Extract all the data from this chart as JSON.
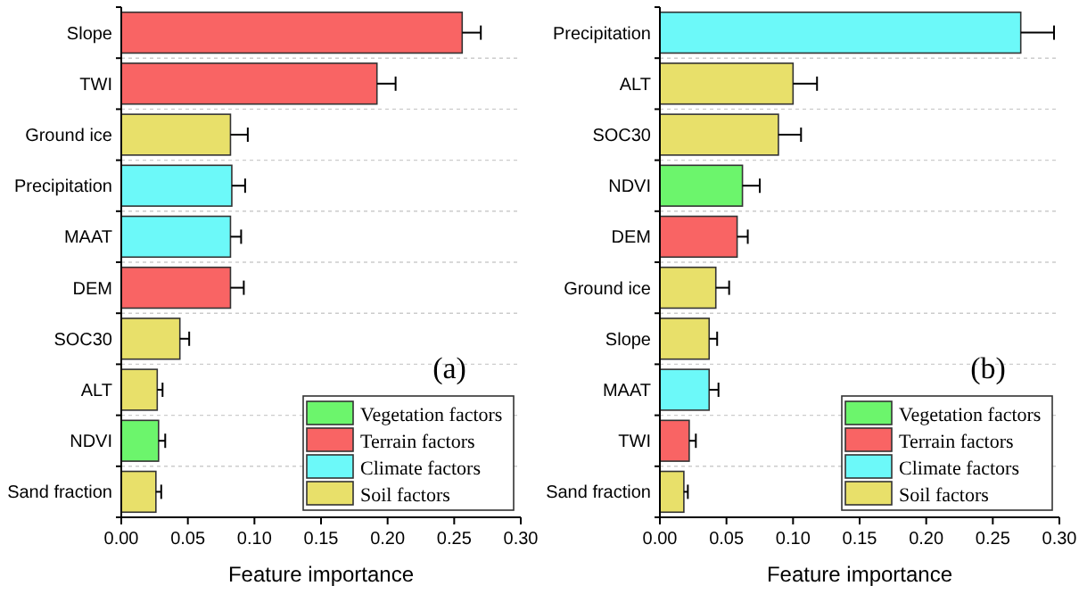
{
  "chart_data": [
    {
      "type": "bar",
      "orientation": "horizontal",
      "stacked": true,
      "xlabel": "Feature importance",
      "categories": [
        "Slope",
        "TWI",
        "Ground ice",
        "Precipitation",
        "MAAT",
        "DEM",
        "SOC30",
        "ALT",
        "NDVI",
        "Sand fraction"
      ],
      "xlim": [
        0,
        0.3
      ],
      "xticks": [
        {
          "value": 0,
          "label": "0.00"
        },
        0.05,
        {
          "value": 0.1,
          "label": "0.10"
        },
        0.15,
        {
          "value": 0.2,
          "label": "0.20"
        },
        0.25,
        {
          "value": 0.3,
          "label": "0.30"
        }
      ],
      "grid": "y",
      "legend": "bottom right",
      "annotations": [
        "(a)"
      ],
      "series": [
        {
          "name": "Vegetation factors",
          "color": "#6cf56c",
          "values": [
            null,
            null,
            null,
            null,
            null,
            null,
            null,
            null,
            0.028,
            null
          ],
          "errors": [
            null,
            null,
            null,
            null,
            null,
            null,
            null,
            null,
            0.005,
            null
          ]
        },
        {
          "name": "Terrain factors",
          "color": "#f96464",
          "values": [
            0.256,
            0.192,
            null,
            null,
            null,
            0.082,
            null,
            null,
            null,
            null
          ],
          "errors": [
            0.014,
            0.014,
            null,
            null,
            null,
            0.01,
            null,
            null,
            null,
            null
          ]
        },
        {
          "name": "Climate factors",
          "color": "#6cf9f9",
          "values": [
            null,
            null,
            null,
            0.083,
            0.082,
            null,
            null,
            null,
            null,
            null
          ],
          "errors": [
            null,
            null,
            null,
            0.01,
            0.008,
            null,
            null,
            null,
            null,
            null
          ]
        },
        {
          "name": "Soil factors",
          "color": "#e8e06a",
          "values": [
            null,
            null,
            0.082,
            null,
            null,
            null,
            0.044,
            0.027,
            null,
            0.026
          ],
          "errors": [
            null,
            null,
            0.013,
            null,
            null,
            null,
            0.007,
            0.004,
            null,
            0.004
          ]
        }
      ]
    },
    {
      "type": "bar",
      "orientation": "horizontal",
      "stacked": true,
      "xlabel": "Feature importance",
      "categories": [
        "Precipitation",
        "ALT",
        "SOC30",
        "NDVI",
        "DEM",
        "Ground ice",
        "Slope",
        "MAAT",
        "TWI",
        "Sand fraction"
      ],
      "xlim": [
        0,
        0.3
      ],
      "xticks": [
        {
          "value": 0,
          "label": "0.00"
        },
        0.05,
        {
          "value": 0.1,
          "label": "0.10"
        },
        0.15,
        {
          "value": 0.2,
          "label": "0.20"
        },
        0.25,
        {
          "value": 0.3,
          "label": "0.30"
        }
      ],
      "grid": "y",
      "legend": "bottom right",
      "annotations": [
        "(b)"
      ],
      "series": [
        {
          "name": "Vegetation factors",
          "color": "#6cf56c",
          "values": [
            null,
            null,
            null,
            0.062,
            null,
            null,
            null,
            null,
            null,
            null
          ],
          "errors": [
            null,
            null,
            null,
            0.013,
            null,
            null,
            null,
            null,
            null,
            null
          ]
        },
        {
          "name": "Terrain factors",
          "color": "#f96464",
          "values": [
            null,
            null,
            null,
            null,
            0.058,
            null,
            null,
            null,
            0.022,
            null
          ],
          "errors": [
            null,
            null,
            null,
            null,
            0.008,
            null,
            null,
            null,
            0.005,
            null
          ]
        },
        {
          "name": "Climate factors",
          "color": "#6cf9f9",
          "values": [
            0.271,
            null,
            null,
            null,
            null,
            null,
            null,
            0.037,
            null,
            null
          ],
          "errors": [
            0.025,
            null,
            null,
            null,
            null,
            null,
            null,
            0.007,
            null,
            null
          ]
        },
        {
          "name": "Soil factors",
          "color": "#e8e06a",
          "values": [
            null,
            0.1,
            0.089,
            null,
            null,
            0.042,
            0.037,
            null,
            null,
            0.018
          ],
          "errors": [
            null,
            0.018,
            0.017,
            null,
            null,
            0.01,
            0.006,
            null,
            null,
            0.003
          ]
        }
      ]
    }
  ]
}
